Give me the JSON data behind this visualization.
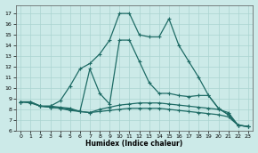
{
  "xlabel": "Humidex (Indice chaleur)",
  "background_color": "#cceae8",
  "grid_color": "#aad4d0",
  "line_color": "#1e6b65",
  "xlim": [
    -0.5,
    23.5
  ],
  "ylim": [
    6.0,
    17.8
  ],
  "xticks": [
    0,
    1,
    2,
    3,
    4,
    5,
    6,
    7,
    8,
    9,
    10,
    11,
    12,
    13,
    14,
    15,
    16,
    17,
    18,
    19,
    20,
    21,
    22,
    23
  ],
  "yticks": [
    6,
    7,
    8,
    9,
    10,
    11,
    12,
    13,
    14,
    15,
    16,
    17
  ],
  "series": [
    {
      "x": [
        0,
        1,
        2,
        3,
        4,
        5,
        6,
        7,
        8,
        9,
        10,
        11,
        12,
        13,
        14,
        15,
        16,
        17,
        18,
        19,
        20,
        21,
        22,
        23
      ],
      "y": [
        8.7,
        8.7,
        8.3,
        8.3,
        8.8,
        10.2,
        11.8,
        12.3,
        13.2,
        14.5,
        17.0,
        17.0,
        15.0,
        14.8,
        14.8,
        16.5,
        14.0,
        12.5,
        11.0,
        9.3,
        8.1,
        7.5,
        6.5,
        6.4
      ]
    },
    {
      "x": [
        0,
        1,
        2,
        3,
        4,
        5,
        6,
        7,
        8,
        9,
        10,
        11,
        12,
        13,
        14,
        15,
        16,
        17,
        18,
        19,
        20,
        21,
        22,
        23
      ],
      "y": [
        8.7,
        8.7,
        8.3,
        8.3,
        8.2,
        8.1,
        7.8,
        11.8,
        9.5,
        8.5,
        14.5,
        14.5,
        12.5,
        10.5,
        9.5,
        9.5,
        9.3,
        9.2,
        9.3,
        9.3,
        8.1,
        7.5,
        6.5,
        6.4
      ]
    },
    {
      "x": [
        0,
        1,
        2,
        3,
        4,
        5,
        6,
        7,
        8,
        9,
        10,
        11,
        12,
        13,
        14,
        15,
        16,
        17,
        18,
        19,
        20,
        21,
        22,
        23
      ],
      "y": [
        8.7,
        8.7,
        8.3,
        8.2,
        8.1,
        8.0,
        7.8,
        7.7,
        8.0,
        8.2,
        8.4,
        8.5,
        8.6,
        8.6,
        8.6,
        8.5,
        8.4,
        8.3,
        8.2,
        8.1,
        8.0,
        7.7,
        6.5,
        6.4
      ]
    },
    {
      "x": [
        0,
        1,
        2,
        3,
        4,
        5,
        6,
        7,
        8,
        9,
        10,
        11,
        12,
        13,
        14,
        15,
        16,
        17,
        18,
        19,
        20,
        21,
        22,
        23
      ],
      "y": [
        8.7,
        8.6,
        8.3,
        8.2,
        8.1,
        7.9,
        7.8,
        7.7,
        7.8,
        7.9,
        8.0,
        8.1,
        8.1,
        8.1,
        8.1,
        8.0,
        7.9,
        7.8,
        7.7,
        7.6,
        7.5,
        7.3,
        6.5,
        6.4
      ]
    }
  ]
}
